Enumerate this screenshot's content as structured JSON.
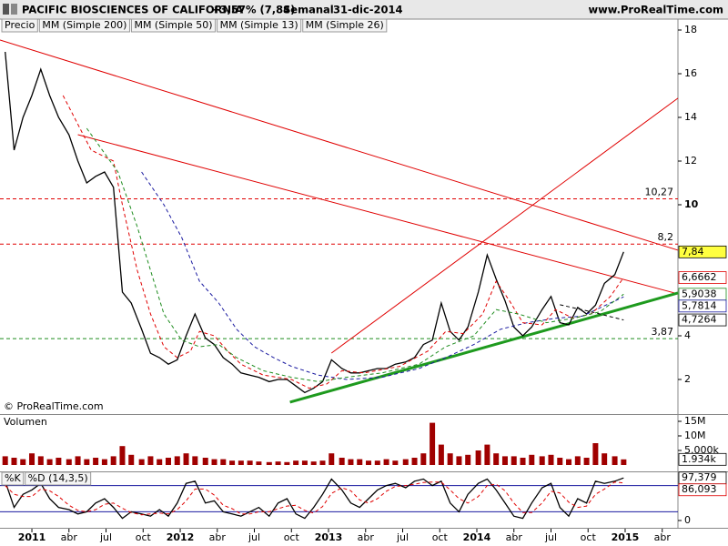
{
  "header": {
    "title": "PACIFIC BIOSCIENCES OF CALIFORNIA",
    "change": "+3,57% (7,84)",
    "period": "Semanal",
    "date": "31-dic-2014",
    "site": "www.ProRealTime.com"
  },
  "chart_data": [
    {
      "type": "line",
      "copyright": "© ProRealTime.com",
      "xlim": [
        2010.785,
        2015.356
      ],
      "ylim": [
        0.417,
        18.458
      ],
      "yticks": [
        2,
        4,
        10,
        12,
        14,
        16,
        18
      ],
      "series": [
        {
          "name": "Precio",
          "color": "#000000",
          "dashed": false,
          "last_label": "7,84",
          "x": [
            2010.82,
            2010.88,
            2010.94,
            2011.0,
            2011.06,
            2011.12,
            2011.18,
            2011.25,
            2011.31,
            2011.37,
            2011.43,
            2011.49,
            2011.55,
            2011.61,
            2011.67,
            2011.74,
            2011.8,
            2011.86,
            2011.92,
            2011.98,
            2012.04,
            2012.1,
            2012.17,
            2012.23,
            2012.29,
            2012.35,
            2012.41,
            2012.47,
            2012.53,
            2012.6,
            2012.66,
            2012.72,
            2012.78,
            2012.84,
            2012.9,
            2012.96,
            2013.02,
            2013.09,
            2013.15,
            2013.21,
            2013.27,
            2013.33,
            2013.39,
            2013.45,
            2013.52,
            2013.58,
            2013.64,
            2013.7,
            2013.76,
            2013.82,
            2013.88,
            2013.94,
            2014.01,
            2014.07,
            2014.13,
            2014.19,
            2014.25,
            2014.31,
            2014.37,
            2014.44,
            2014.5,
            2014.56,
            2014.62,
            2014.68,
            2014.74,
            2014.8,
            2014.86,
            2014.93,
            2014.99
          ],
          "values": [
            17.0,
            12.5,
            14.0,
            15.0,
            16.2,
            15.0,
            14.0,
            13.2,
            12.0,
            11.0,
            11.3,
            11.5,
            10.8,
            6.0,
            5.5,
            4.3,
            3.2,
            3.0,
            2.7,
            2.9,
            4.0,
            5.0,
            3.9,
            3.6,
            3.0,
            2.7,
            2.3,
            2.2,
            2.1,
            1.9,
            2.0,
            2.0,
            1.7,
            1.4,
            1.6,
            1.9,
            2.9,
            2.5,
            2.3,
            2.3,
            2.4,
            2.5,
            2.5,
            2.7,
            2.8,
            3.0,
            3.6,
            3.8,
            5.5,
            4.2,
            3.8,
            4.4,
            6.0,
            7.7,
            6.6,
            5.6,
            4.4,
            4.0,
            4.4,
            5.2,
            5.8,
            4.6,
            4.5,
            5.3,
            5.0,
            5.4,
            6.4,
            6.8,
            7.84
          ]
        },
        {
          "name": "MM (Simple 200)",
          "color": "#000000",
          "dashed": true,
          "last_label": "4,7264",
          "x": [
            2014.56,
            2014.77,
            2014.99
          ],
          "values": [
            5.42,
            5.1,
            4.7264
          ]
        },
        {
          "name": "MM (Simple 50)",
          "color": "#1a1aa0",
          "dashed": true,
          "last_label": "5,7814",
          "x": [
            2011.74,
            2011.89,
            2012.01,
            2012.13,
            2012.26,
            2012.38,
            2012.5,
            2012.63,
            2012.75,
            2012.93,
            2013.12,
            2013.36,
            2013.61,
            2013.79,
            2013.98,
            2014.16,
            2014.34,
            2014.53,
            2014.71,
            2014.99
          ],
          "values": [
            11.5,
            10.0,
            8.5,
            6.5,
            5.5,
            4.3,
            3.5,
            3.0,
            2.6,
            2.2,
            2.0,
            2.1,
            2.5,
            3.0,
            3.6,
            4.3,
            4.6,
            4.8,
            4.9,
            5.7814
          ]
        },
        {
          "name": "MM (Simple 13)",
          "color": "#e00000",
          "dashed": true,
          "last_label": "6,6662",
          "x": [
            2011.21,
            2011.4,
            2011.55,
            2011.61,
            2011.71,
            2011.8,
            2011.89,
            2011.98,
            2012.07,
            2012.13,
            2012.23,
            2012.32,
            2012.41,
            2012.56,
            2012.75,
            2012.87,
            2012.99,
            2013.09,
            2013.24,
            2013.48,
            2013.67,
            2013.79,
            2013.91,
            2014.04,
            2014.13,
            2014.22,
            2014.31,
            2014.44,
            2014.53,
            2014.65,
            2014.77,
            2014.9,
            2014.99
          ],
          "values": [
            15.0,
            12.5,
            12.0,
            10.0,
            7.0,
            5.0,
            3.5,
            3.0,
            3.3,
            4.2,
            4.0,
            3.3,
            2.7,
            2.2,
            2.0,
            1.6,
            1.8,
            2.4,
            2.3,
            2.6,
            3.3,
            4.2,
            4.1,
            5.0,
            6.5,
            5.6,
            4.6,
            4.5,
            5.2,
            4.8,
            5.0,
            5.8,
            6.6662
          ]
        },
        {
          "name": "MM (Simple 26)",
          "color": "#1e8c1e",
          "dashed": true,
          "last_label": "5,9038",
          "x": [
            2011.37,
            2011.58,
            2011.71,
            2011.8,
            2011.89,
            2012.01,
            2012.13,
            2012.26,
            2012.38,
            2012.56,
            2012.75,
            2012.93,
            2013.12,
            2013.36,
            2013.61,
            2013.79,
            2013.98,
            2014.13,
            2014.28,
            2014.47,
            2014.65,
            2014.83,
            2014.99
          ],
          "values": [
            13.5,
            11.5,
            9.0,
            7.0,
            5.0,
            3.8,
            3.5,
            3.6,
            3.0,
            2.4,
            2.1,
            1.9,
            2.1,
            2.3,
            2.7,
            3.5,
            4.0,
            5.2,
            5.0,
            4.6,
            4.8,
            5.1,
            5.9038
          ]
        }
      ],
      "trendlines": [
        {
          "color": "#e00000",
          "width": 1,
          "x": [
            2010.785,
            2015.356
          ],
          "values": [
            17.54,
            7.92
          ]
        },
        {
          "color": "#e00000",
          "width": 1,
          "x": [
            2011.31,
            2015.356
          ],
          "values": [
            13.21,
            5.92
          ]
        },
        {
          "color": "#e00000",
          "width": 1,
          "x": [
            2013.02,
            2015.356
          ],
          "values": [
            3.21,
            14.88
          ]
        },
        {
          "color": "#1e9a1e",
          "width": 3,
          "x": [
            2012.74,
            2015.356
          ],
          "values": [
            0.96,
            5.96
          ]
        }
      ],
      "levels": [
        {
          "value": 10.27,
          "label": "10,27",
          "color": "#e00000"
        },
        {
          "value": 8.2,
          "label": "8,2",
          "color": "#e00000"
        },
        {
          "value": 3.87,
          "label": "3,87",
          "color": "#1e8c1e"
        }
      ]
    },
    {
      "type": "bar",
      "title": "Volumen",
      "color": "#a00000",
      "last_label": "1.934k",
      "xlim": [
        2010.785,
        2015.356
      ],
      "ylim": [
        -2.19,
        17.19
      ],
      "yticks": [
        {
          "value": 15,
          "label": "15M"
        },
        {
          "value": 10,
          "label": "10M"
        },
        {
          "value": 5,
          "label": "5.000k"
        }
      ],
      "values": [
        3,
        2.5,
        2,
        4,
        3,
        2,
        2.5,
        2,
        3,
        2,
        2.5,
        2,
        3,
        6.5,
        3.5,
        2,
        3,
        2,
        2.5,
        3,
        4,
        3,
        2.5,
        2,
        2,
        1.5,
        1.5,
        1.5,
        1.2,
        1,
        1.2,
        1,
        1.5,
        1.5,
        1.2,
        1.5,
        4,
        2.5,
        2,
        2,
        1.5,
        1.5,
        2,
        1.5,
        2,
        2.5,
        4,
        14.5,
        7,
        4,
        3,
        3.5,
        5,
        7,
        4,
        3,
        3,
        2.5,
        3.5,
        3,
        3.5,
        2.5,
        2,
        3,
        2.5,
        7.5,
        4,
        3,
        1.934
      ]
    },
    {
      "type": "line",
      "xlim": [
        2010.785,
        2015.356
      ],
      "ylim": [
        -16.7,
        108.3
      ],
      "yticks": [
        0
      ],
      "levels": [
        20,
        80
      ],
      "xticks": [
        2011,
        {
          "value": 2011.25,
          "label": "abr"
        },
        {
          "value": 2011.5,
          "label": "jul"
        },
        {
          "value": 2011.75,
          "label": "oct"
        },
        2012,
        {
          "value": 2012.25,
          "label": "abr"
        },
        {
          "value": 2012.5,
          "label": "jul"
        },
        {
          "value": 2012.75,
          "label": "oct"
        },
        2013,
        {
          "value": 2013.25,
          "label": "abr"
        },
        {
          "value": 2013.5,
          "label": "jul"
        },
        {
          "value": 2013.75,
          "label": "oct"
        },
        2014,
        {
          "value": 2014.25,
          "label": "abr"
        },
        {
          "value": 2014.5,
          "label": "jul"
        },
        {
          "value": 2014.75,
          "label": "oct"
        },
        2015,
        {
          "value": 2015.25,
          "label": "abr"
        }
      ],
      "series": [
        {
          "name": "%K",
          "color": "#000000",
          "dashed": false,
          "last_label": "97,379",
          "values": [
            90,
            30,
            60,
            70,
            85,
            50,
            30,
            25,
            15,
            20,
            40,
            50,
            30,
            5,
            20,
            15,
            10,
            25,
            10,
            40,
            85,
            90,
            40,
            45,
            20,
            15,
            10,
            20,
            30,
            10,
            40,
            50,
            15,
            5,
            30,
            60,
            95,
            70,
            40,
            30,
            50,
            70,
            80,
            85,
            75,
            90,
            95,
            80,
            90,
            40,
            20,
            60,
            85,
            95,
            70,
            40,
            10,
            5,
            40,
            75,
            85,
            30,
            10,
            50,
            40,
            90,
            85,
            90,
            97.379
          ]
        },
        {
          "name": "%D (14,3,5)",
          "color": "#e00000",
          "dashed": true,
          "last_label": "86,093",
          "values": [
            80,
            60,
            55,
            55,
            72,
            68,
            55,
            35,
            23,
            20,
            25,
            37,
            40,
            28,
            18,
            13,
            15,
            17,
            15,
            25,
            45,
            72,
            72,
            58,
            35,
            27,
            15,
            15,
            20,
            20,
            27,
            33,
            35,
            23,
            17,
            32,
            62,
            75,
            68,
            47,
            40,
            50,
            67,
            78,
            80,
            83,
            87,
            88,
            88,
            70,
            50,
            40,
            55,
            80,
            83,
            68,
            40,
            18,
            18,
            40,
            67,
            63,
            42,
            30,
            33,
            60,
            72,
            88,
            86.093
          ]
        }
      ]
    }
  ]
}
